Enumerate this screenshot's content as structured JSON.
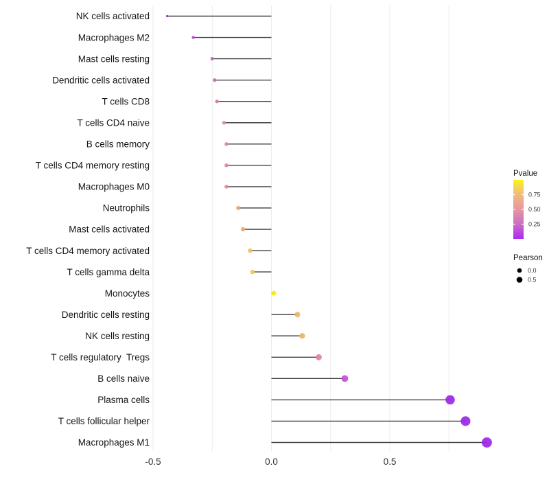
{
  "chart_data": {
    "type": "lollipop",
    "title": "",
    "xlabel": "",
    "ylabel": "",
    "orientation": "horizontal",
    "x_ticks": [
      -0.5,
      0.0,
      0.5
    ],
    "x_tick_labels": [
      "-0.5",
      "0.0",
      "0.5"
    ],
    "grid_x": [
      -0.5,
      -0.25,
      0.0,
      0.25,
      0.5,
      0.75
    ],
    "xlim": [
      -0.52,
      0.99
    ],
    "grid": "vertical-only",
    "legend_position": "right",
    "points": [
      {
        "label": "NK cells activated",
        "pearson": -0.44,
        "color": "#9038C8"
      },
      {
        "label": "Macrophages M2",
        "pearson": -0.33,
        "color": "#B844D4"
      },
      {
        "label": "Mast cells resting",
        "pearson": -0.25,
        "color": "#C763BB"
      },
      {
        "label": "Dendritic cells activated",
        "pearson": -0.24,
        "color": "#C966B3"
      },
      {
        "label": "T cells CD8",
        "pearson": -0.23,
        "color": "#D179A6"
      },
      {
        "label": "T cells CD4 naive",
        "pearson": -0.2,
        "color": "#E08A93"
      },
      {
        "label": "B cells memory",
        "pearson": -0.19,
        "color": "#E08A93"
      },
      {
        "label": "T cells CD4 memory resting",
        "pearson": -0.19,
        "color": "#E18B91"
      },
      {
        "label": "Macrophages M0",
        "pearson": -0.19,
        "color": "#E28A8D"
      },
      {
        "label": "Neutrophils",
        "pearson": -0.14,
        "color": "#E8A26F"
      },
      {
        "label": "Mast cells activated",
        "pearson": -0.12,
        "color": "#E9A76B"
      },
      {
        "label": "T cells CD4 memory activated",
        "pearson": -0.09,
        "color": "#EFC25B"
      },
      {
        "label": "T cells gamma delta",
        "pearson": -0.08,
        "color": "#F0C853"
      },
      {
        "label": "Monocytes",
        "pearson": 0.01,
        "color": "#F6F00F"
      },
      {
        "label": "Dendritic cells resting",
        "pearson": 0.11,
        "color": "#F0B368"
      },
      {
        "label": "NK cells resting",
        "pearson": 0.13,
        "color": "#F0B368"
      },
      {
        "label": "T cells regulatory  Tregs",
        "pearson": 0.2,
        "color": "#E2849E"
      },
      {
        "label": "B cells naive",
        "pearson": 0.31,
        "color": "#C44FD9"
      },
      {
        "label": "Plasma cells",
        "pearson": 0.755,
        "color": "#9B27E6"
      },
      {
        "label": "T cells follicular helper",
        "pearson": 0.82,
        "color": "#9B27E6"
      },
      {
        "label": "Macrophages M1",
        "pearson": 0.91,
        "color": "#9B27E6"
      }
    ],
    "legend": {
      "pvalue": {
        "title": "Pvalue",
        "range": [
          0,
          1
        ],
        "ticks": [
          {
            "value": 0.75,
            "label": "0.75"
          },
          {
            "value": 0.5,
            "label": "0.50"
          },
          {
            "value": 0.25,
            "label": "0.25"
          }
        ],
        "gradient": [
          {
            "offset": 0.0,
            "color": "#FAF60D"
          },
          {
            "offset": 0.12,
            "color": "#F6D655"
          },
          {
            "offset": 0.25,
            "color": "#F2BA7B"
          },
          {
            "offset": 0.5,
            "color": "#E796A1"
          },
          {
            "offset": 0.73,
            "color": "#CD72C1"
          },
          {
            "offset": 0.87,
            "color": "#BC4BDE"
          },
          {
            "offset": 1.0,
            "color": "#AB2BF2"
          }
        ]
      },
      "pearson": {
        "title": "Pearson",
        "sizes": [
          {
            "value": 0.0,
            "label": "0.0"
          },
          {
            "value": 0.5,
            "label": "0.5"
          }
        ]
      }
    }
  },
  "style": {
    "background": "#ffffff",
    "segment_color": "#404040",
    "grid_color": "#ececec",
    "category_text_color": "#141414",
    "axis_tick_text_color": "#2e2e2e",
    "legend_title_color": "#111111",
    "legend_tick_text_color": "#333333",
    "legend_dot_color": "#000000",
    "dot_opacity": 0.92
  }
}
